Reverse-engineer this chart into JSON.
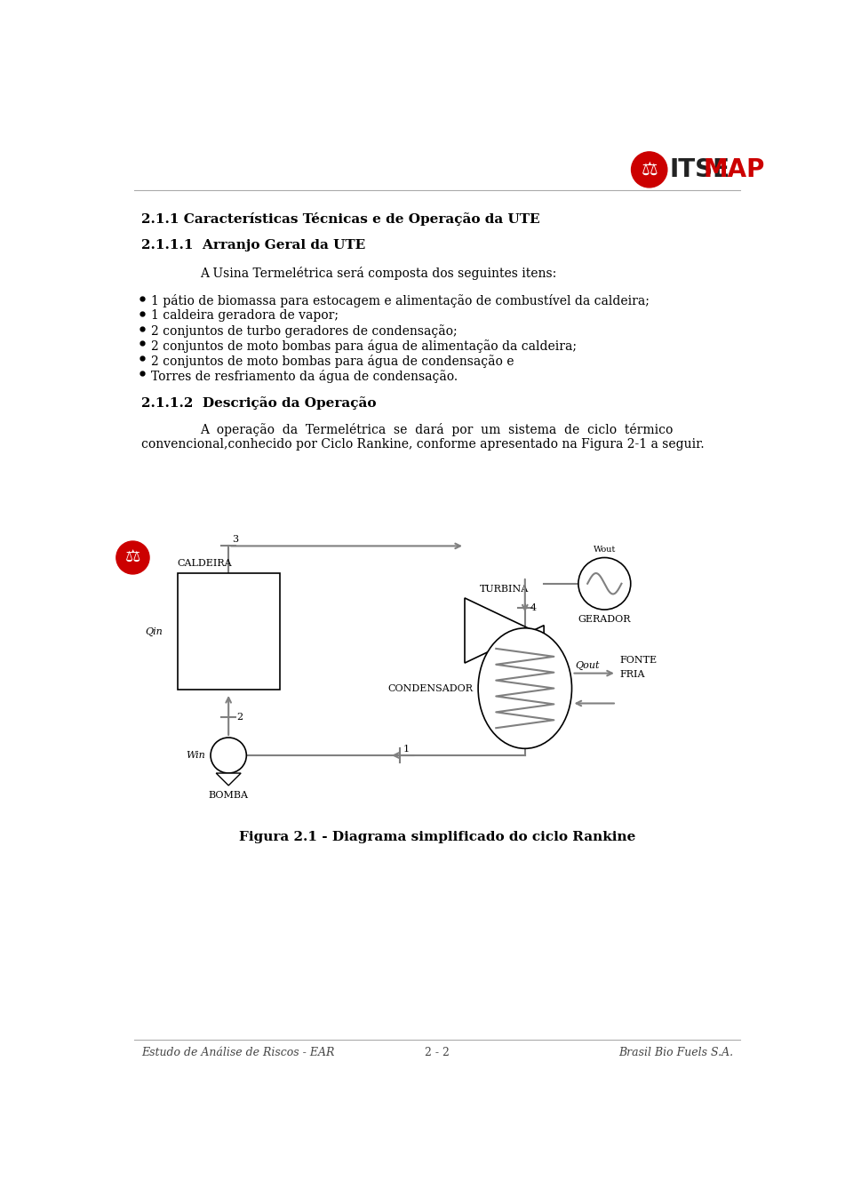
{
  "title1": "2.1.1 Características Técnicas e de Operação da UTE",
  "title2": "2.1.1.1  Arranjo Geral da UTE",
  "intro": "A Usina Termelétrica será composta dos seguintes itens:",
  "bullets": [
    "1 pátio de biomassa para estocagem e alimentação de combustível da caldeira;",
    "1 caldeira geradora de vapor;",
    "2 conjuntos de turbo geradores de condensação;",
    "2 conjuntos de moto bombas para água de alimentação da caldeira;",
    "2 conjuntos de moto bombas para água de condensação e",
    "Torres de resfriamento da água de condensação."
  ],
  "title3": "2.1.1.2  Descrição da Operação",
  "para1a": "A  operação  da  Termelétrica  se  dará  por  um  sistema  de  ciclo  térmico",
  "para1b": "convencional,conhecido por Ciclo Rankine, conforme apresentado na Figura 2-1 a seguir.",
  "fig_caption": "Figura 2.1 - Diagrama simplificado do ciclo Rankine",
  "footer_left": "Estudo de Análise de Riscos - EAR",
  "footer_center": "2 - 2",
  "footer_right": "Brasil Bio Fuels S.A.",
  "bg_color": "#ffffff",
  "text_color": "#000000",
  "gray": "#808080",
  "red": "#cc0000"
}
